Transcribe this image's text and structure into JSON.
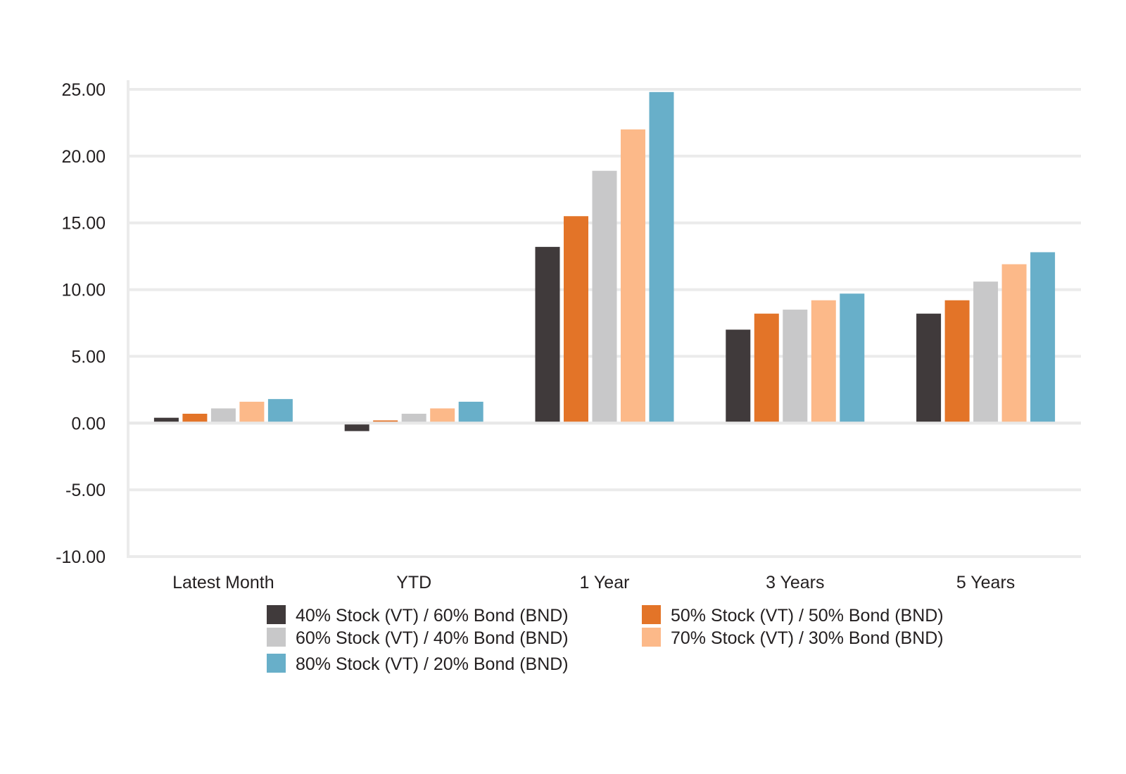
{
  "chart_data": {
    "type": "bar",
    "title": "",
    "xlabel": "",
    "ylabel": "",
    "ylim": [
      -10,
      25
    ],
    "y_ticks": [
      "25.00",
      "20.00",
      "15.00",
      "10.00",
      "5.00",
      "0.00",
      "-5.00",
      "-10.00"
    ],
    "y_tick_values": [
      25,
      20,
      15,
      10,
      5,
      0,
      -5,
      -10
    ],
    "grid": true,
    "legend_position": "bottom",
    "categories": [
      "Latest Month",
      "YTD",
      "1 Year",
      "3 Years",
      "5 Years"
    ],
    "series": [
      {
        "name": "40% Stock (VT) / 60% Bond (BND)",
        "color": "#403a3b",
        "values": [
          0.4,
          -0.6,
          13.2,
          7.0,
          8.2
        ]
      },
      {
        "name": "50% Stock (VT) / 50% Bond (BND)",
        "color": "#e37428",
        "values": [
          0.7,
          0.2,
          15.5,
          8.2,
          9.2
        ]
      },
      {
        "name": "60% Stock (VT) / 40% Bond (BND)",
        "color": "#c8c8c9",
        "values": [
          1.1,
          0.7,
          18.9,
          8.5,
          10.6
        ]
      },
      {
        "name": "70% Stock (VT) / 30% Bond (BND)",
        "color": "#fcb989",
        "values": [
          1.6,
          1.1,
          22.0,
          9.2,
          11.9
        ]
      },
      {
        "name": "80% Stock (VT) / 20% Bond (BND)",
        "color": "#68afc9",
        "values": [
          1.8,
          1.6,
          24.8,
          9.7,
          12.8
        ]
      }
    ]
  }
}
